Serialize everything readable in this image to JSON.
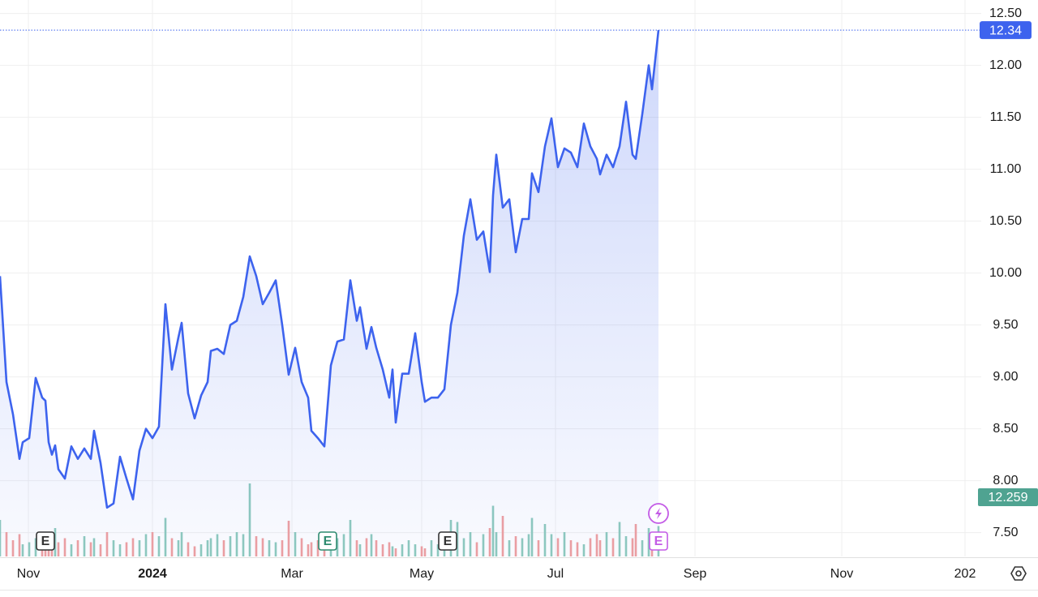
{
  "chart_data": {
    "type": "line",
    "series": [
      {
        "color": "#3d63ee",
        "x": [
          0,
          2,
          4,
          6,
          7,
          9,
          11,
          13,
          14,
          15,
          16,
          17,
          18,
          20,
          22,
          24,
          26,
          28,
          29,
          31,
          33,
          35,
          37,
          39,
          41,
          43,
          45,
          47,
          49,
          51,
          53,
          55,
          56,
          58,
          60,
          62,
          64,
          65,
          67,
          69,
          71,
          73,
          75,
          77,
          79,
          81,
          83,
          85,
          87,
          89,
          91,
          93,
          95,
          96,
          98,
          100,
          102,
          104,
          106,
          108,
          110,
          111,
          113,
          114.5,
          116,
          118,
          120,
          121,
          122,
          124,
          126,
          128,
          130,
          131,
          133,
          135,
          137,
          139,
          141,
          143,
          145,
          147,
          149,
          151,
          152,
          153,
          155,
          157,
          159,
          161,
          163,
          164,
          166,
          168,
          170,
          172,
          174,
          176,
          178,
          180,
          182,
          184,
          185,
          187,
          189,
          191,
          193,
          195,
          196,
          198,
          200,
          201,
          203
        ],
        "values": [
          9.97,
          8.95,
          8.64,
          8.21,
          8.37,
          8.41,
          8.99,
          8.8,
          8.77,
          8.37,
          8.25,
          8.34,
          8.11,
          8.02,
          8.33,
          8.21,
          8.31,
          8.21,
          8.48,
          8.17,
          7.74,
          7.78,
          8.23,
          8.02,
          7.82,
          8.29,
          8.5,
          8.41,
          8.52,
          9.7,
          9.07,
          9.38,
          9.52,
          8.84,
          8.6,
          8.82,
          8.95,
          9.25,
          9.27,
          9.22,
          9.5,
          9.54,
          9.77,
          10.16,
          9.97,
          9.7,
          9.81,
          9.93,
          9.5,
          9.02,
          9.28,
          8.95,
          8.8,
          8.48,
          8.41,
          8.33,
          9.11,
          9.34,
          9.36,
          9.93,
          9.54,
          9.67,
          9.27,
          9.48,
          9.28,
          9.07,
          8.8,
          9.07,
          8.56,
          9.03,
          9.03,
          9.42,
          8.95,
          8.76,
          8.8,
          8.8,
          8.88,
          9.5,
          9.81,
          10.36,
          10.71,
          10.32,
          10.4,
          10.01,
          10.75,
          11.14,
          10.63,
          10.71,
          10.2,
          10.52,
          10.52,
          10.96,
          10.78,
          11.22,
          11.49,
          11.02,
          11.2,
          11.16,
          11.02,
          11.44,
          11.22,
          11.1,
          10.95,
          11.14,
          11.02,
          11.22,
          11.65,
          11.14,
          11.1,
          11.53,
          12.0,
          11.77,
          12.34
        ]
      }
    ],
    "volume": {
      "up_color": "#8fcbbd",
      "down_color": "#f0a0a0",
      "values": [
        90,
        60,
        40,
        55,
        30,
        35,
        45,
        50,
        25,
        40,
        30,
        70,
        35,
        45,
        30,
        40,
        50,
        35,
        45,
        30,
        60,
        40,
        30,
        35,
        45,
        40,
        55,
        60,
        50,
        95,
        45,
        40,
        60,
        35,
        25,
        30,
        40,
        45,
        55,
        40,
        50,
        60,
        55,
        180,
        50,
        45,
        40,
        35,
        40,
        88,
        60,
        45,
        30,
        35,
        40,
        40,
        50,
        45,
        55,
        90,
        40,
        30,
        45,
        55,
        40,
        30,
        35,
        25,
        20,
        30,
        40,
        30,
        25,
        20,
        40,
        30,
        35,
        90,
        85,
        45,
        60,
        35,
        55,
        70,
        125,
        60,
        100,
        40,
        50,
        45,
        55,
        95,
        40,
        80,
        55,
        45,
        60,
        40,
        35,
        30,
        45,
        55,
        40,
        60,
        45,
        85,
        50,
        45,
        80,
        40,
        70,
        40,
        75
      ]
    },
    "events": [
      {
        "x": 14,
        "label": "E",
        "color": "#333333"
      },
      {
        "x": 101,
        "label": "E",
        "color": "#2e8b6f"
      },
      {
        "x": 138,
        "label": "E",
        "color": "#333333"
      },
      {
        "x": 203,
        "label": "E",
        "color": "#c35be6"
      }
    ],
    "last_price": 12.34,
    "secondary_price_label": 12.259,
    "xlim": [
      0,
      302.5
    ],
    "xticks": [
      {
        "value": 8.75,
        "label": "Nov"
      },
      {
        "value": 47,
        "label": "2024"
      },
      {
        "value": 90,
        "label": "Mar"
      },
      {
        "value": 130,
        "label": "May"
      },
      {
        "value": 171.25,
        "label": "Jul"
      },
      {
        "value": 214.25,
        "label": "Sep"
      },
      {
        "value": 259.5,
        "label": "Nov"
      },
      {
        "value": 297.5,
        "label": "202"
      }
    ],
    "ylim": [
      7.27,
      12.63
    ],
    "yticks": [
      {
        "value": 7.5,
        "label": "7.50"
      },
      {
        "value": 8,
        "label": "8.00"
      },
      {
        "value": 8.5,
        "label": "8.50"
      },
      {
        "value": 9,
        "label": "9.00"
      },
      {
        "value": 9.5,
        "label": "9.50"
      },
      {
        "value": 10,
        "label": "10.00"
      },
      {
        "value": 10.5,
        "label": "10.50"
      },
      {
        "value": 11,
        "label": "11.00"
      },
      {
        "value": 11.5,
        "label": "11.50"
      },
      {
        "value": 12,
        "label": "12.00"
      },
      {
        "value": 12.5,
        "label": "12.50"
      }
    ],
    "grid": true
  }
}
